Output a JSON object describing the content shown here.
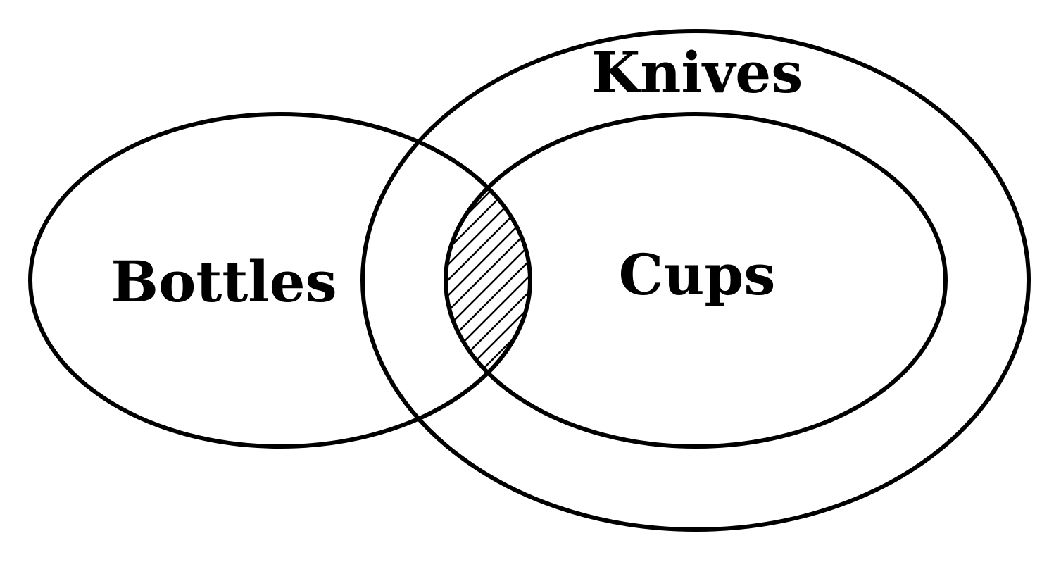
{
  "diagram": {
    "type": "venn",
    "stroke_color": "#000000",
    "background_color": "#ffffff",
    "sets": [
      {
        "id": "bottles",
        "label": "Bottles"
      },
      {
        "id": "knives",
        "label": "Knives"
      },
      {
        "id": "cups",
        "label": "Cups"
      }
    ],
    "relations": [
      {
        "kind": "subset",
        "inner": "cups",
        "outer": "knives"
      },
      {
        "kind": "intersects",
        "a": "bottles",
        "b": "knives"
      }
    ],
    "shaded_regions": [
      {
        "in": [
          "bottles",
          "cups"
        ],
        "pattern": "diagonal-hatch"
      }
    ]
  }
}
